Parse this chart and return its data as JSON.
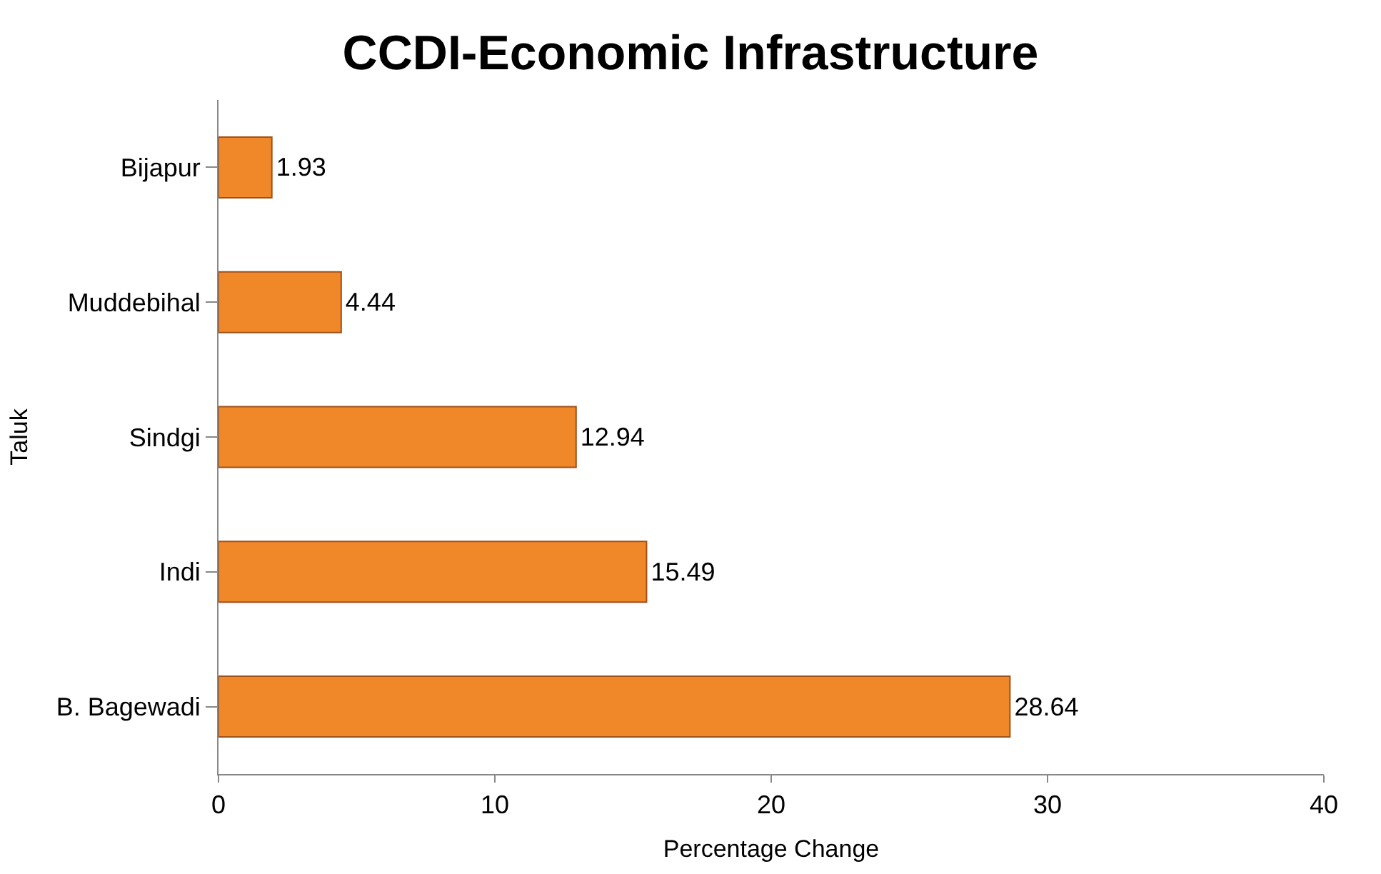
{
  "chart_data": {
    "type": "bar",
    "orientation": "horizontal",
    "title": "CCDI-Economic Infrastructure",
    "xlabel": "Percentage Change",
    "ylabel": "Taluk",
    "categories": [
      "Bijapur",
      "Muddebihal",
      "Sindgi",
      "Indi",
      "B. Bagewadi"
    ],
    "values": [
      1.93,
      4.44,
      12.94,
      15.49,
      28.64
    ],
    "color": "#f0882a",
    "xlim": [
      0,
      40
    ],
    "xticks": [
      0,
      10,
      20,
      30,
      40
    ],
    "grid": false,
    "legend": false,
    "data_labels": true
  }
}
